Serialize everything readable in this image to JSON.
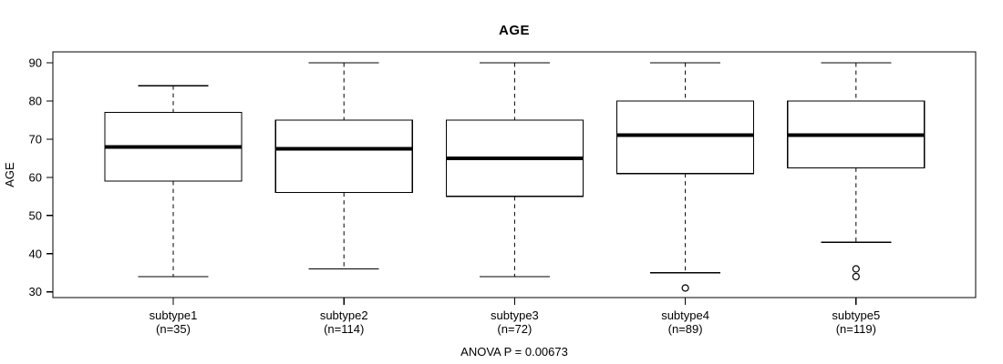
{
  "chart_data": {
    "type": "boxplot",
    "title": "AGE",
    "ylabel": "AGE",
    "footer": "ANOVA P = 0.00673",
    "y_axis": {
      "min": 30,
      "max": 90,
      "tick_step": 10,
      "ticks": [
        30,
        40,
        50,
        60,
        70,
        80,
        90
      ]
    },
    "grid": false,
    "colors": {
      "line": "#000000",
      "box_fill": "#ffffff",
      "background": "#ffffff"
    },
    "groups": [
      {
        "label": "subtype1",
        "sublabel": "(n=35)",
        "n": 35,
        "whisker_low": 34,
        "q1": 59,
        "median": 68,
        "q3": 77,
        "whisker_high": 84,
        "outliers": []
      },
      {
        "label": "subtype2",
        "sublabel": "(n=114)",
        "n": 114,
        "whisker_low": 36,
        "q1": 56,
        "median": 67.5,
        "q3": 75,
        "whisker_high": 90,
        "outliers": []
      },
      {
        "label": "subtype3",
        "sublabel": "(n=72)",
        "n": 72,
        "whisker_low": 34,
        "q1": 55,
        "median": 65,
        "q3": 75,
        "whisker_high": 90,
        "outliers": []
      },
      {
        "label": "subtype4",
        "sublabel": "(n=89)",
        "n": 89,
        "whisker_low": 35,
        "q1": 61,
        "median": 71,
        "q3": 80,
        "whisker_high": 90,
        "outliers": [
          31
        ]
      },
      {
        "label": "subtype5",
        "sublabel": "(n=119)",
        "n": 119,
        "whisker_low": 43,
        "q1": 62.5,
        "median": 71,
        "q3": 80,
        "whisker_high": 90,
        "outliers": [
          36,
          34
        ]
      }
    ]
  }
}
